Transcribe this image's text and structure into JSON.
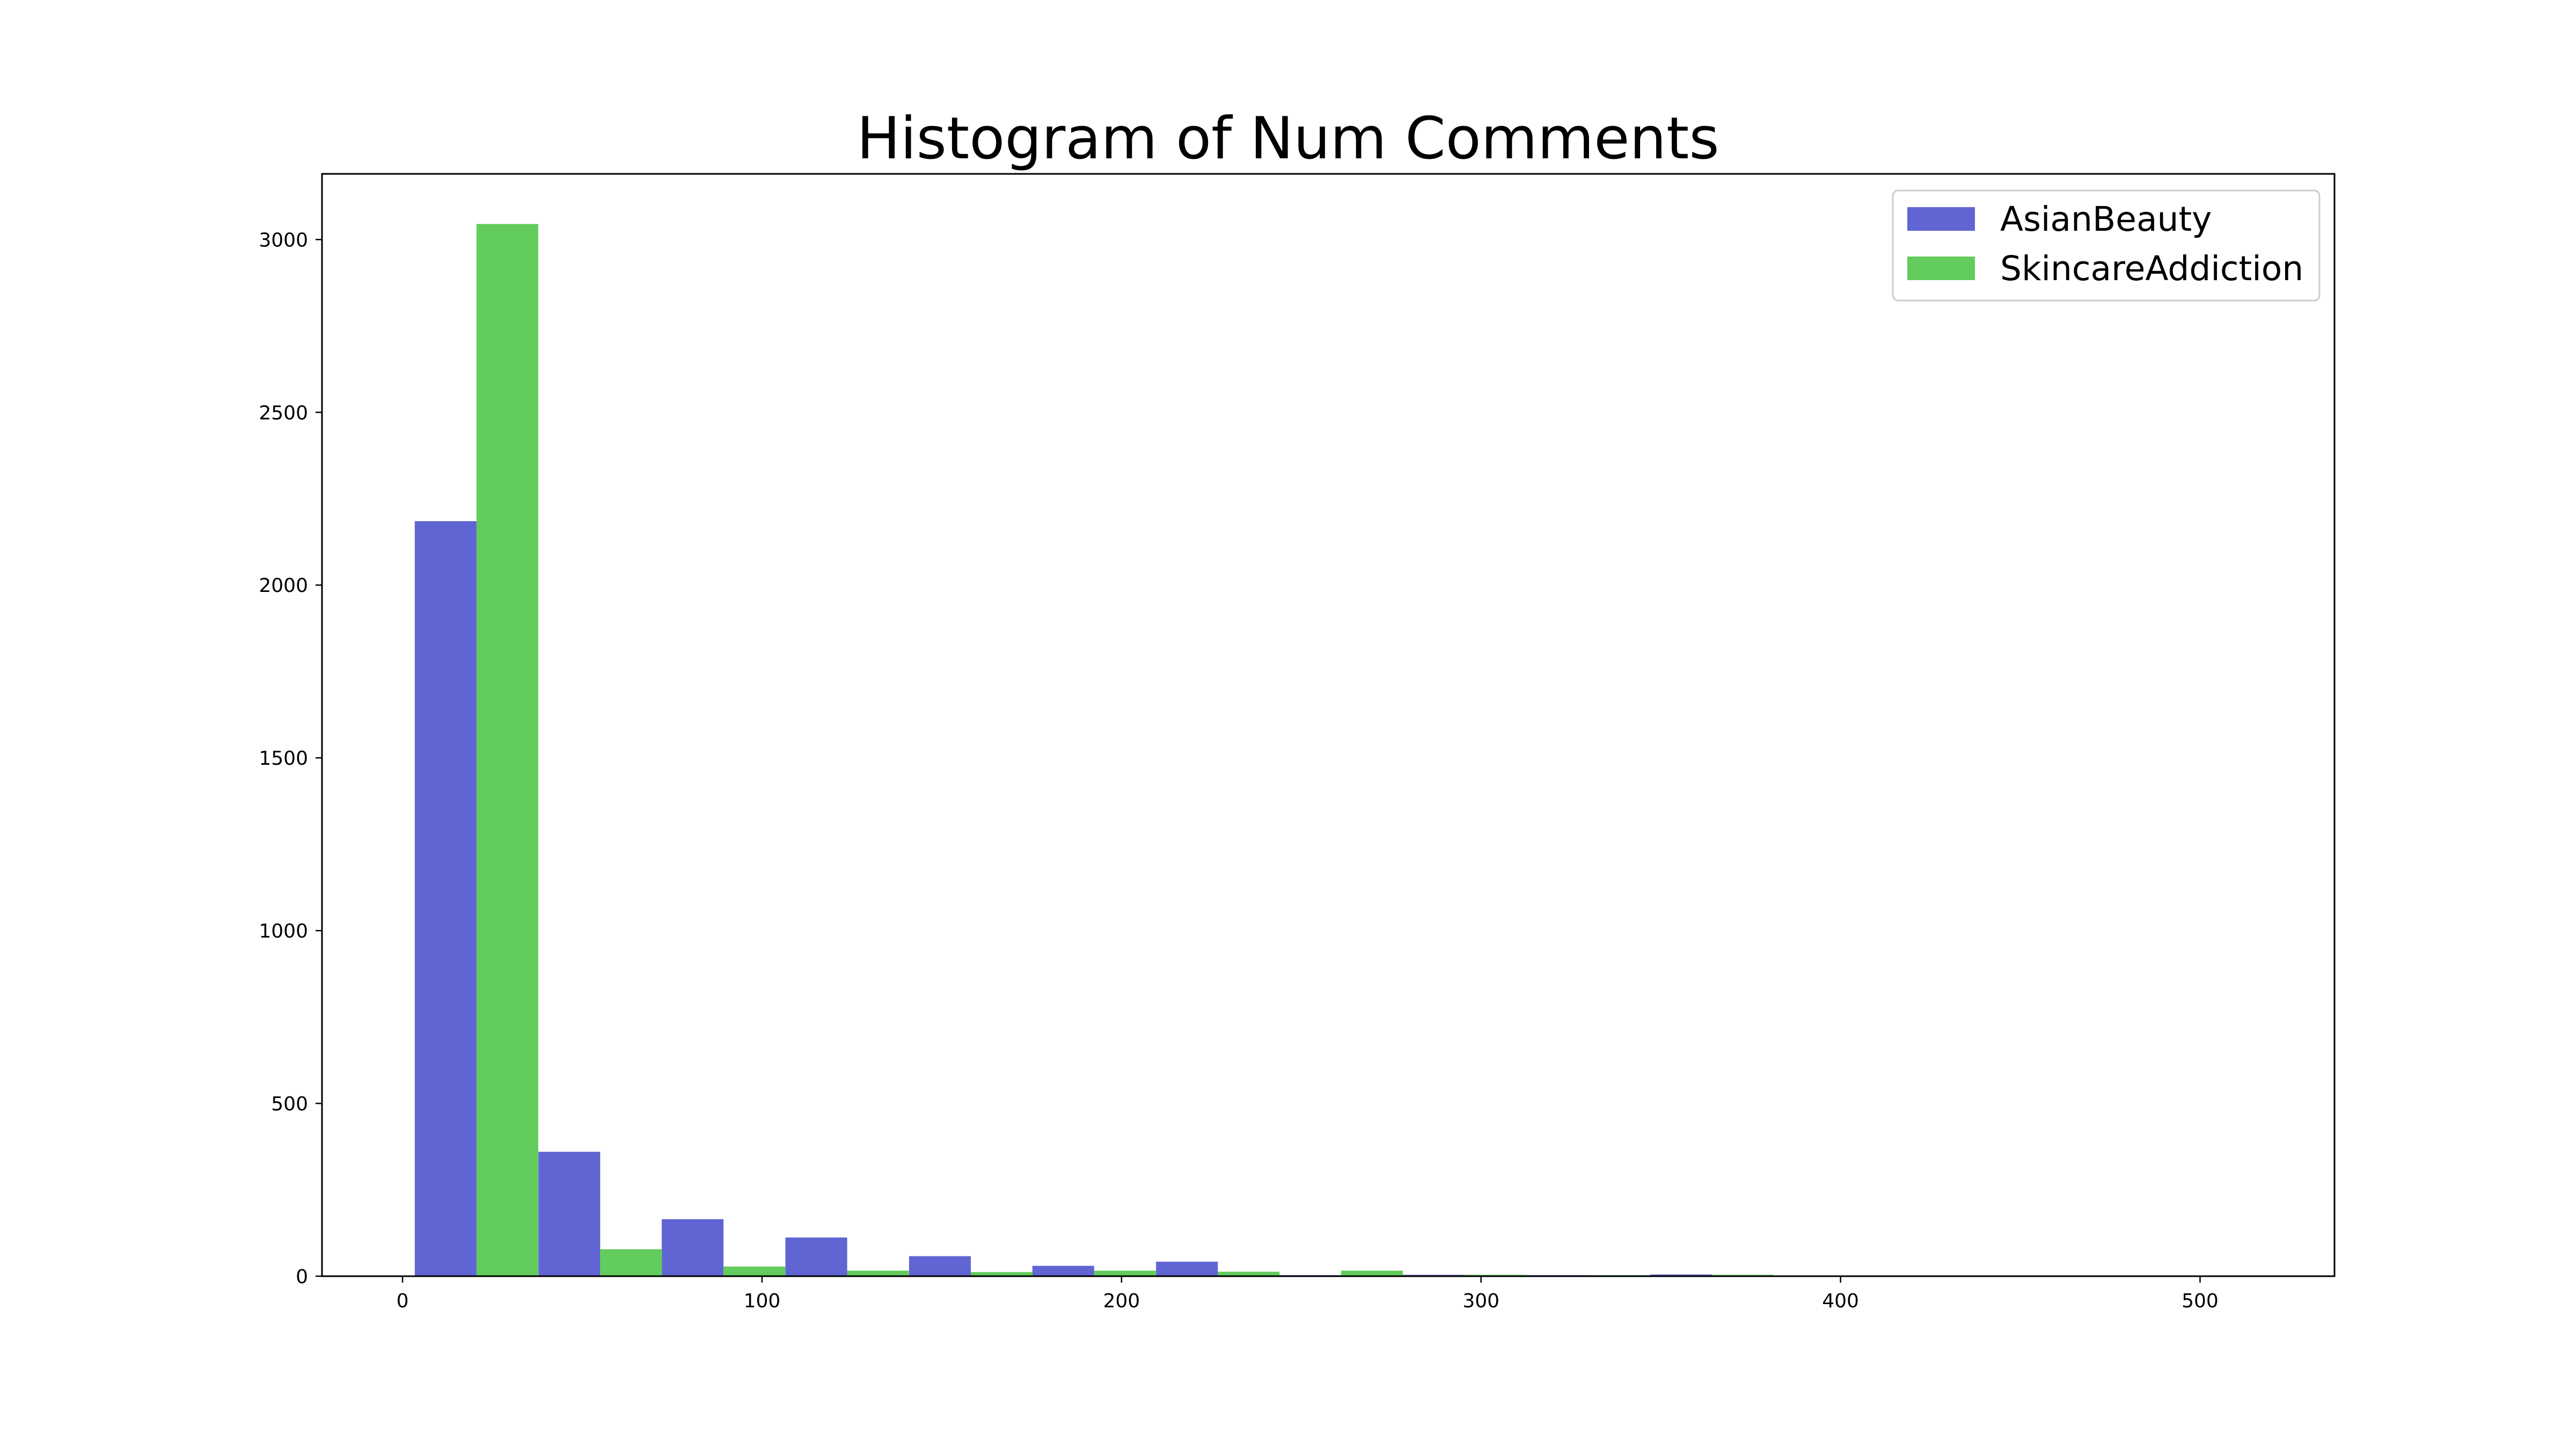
{
  "chart_data": {
    "type": "bar",
    "title": "Histogram of Num Comments",
    "xlabel": "",
    "ylabel": "",
    "xlim": [
      -22.4,
      537.4
    ],
    "ylim": [
      0,
      3190
    ],
    "xticks": [
      0,
      100,
      200,
      300,
      400,
      500
    ],
    "yticks": [
      0,
      500,
      1000,
      1500,
      2000,
      2500,
      3000
    ],
    "grid": false,
    "legend_position": "top-right",
    "bin_width": 34.36,
    "series": [
      {
        "name": "AsianBeauty",
        "color": "#6065d3",
        "bins": [
          {
            "x": 3.4,
            "value": 2185
          },
          {
            "x": 37.8,
            "value": 360
          },
          {
            "x": 72.1,
            "value": 165
          },
          {
            "x": 106.5,
            "value": 112
          },
          {
            "x": 140.9,
            "value": 58
          },
          {
            "x": 175.2,
            "value": 30
          },
          {
            "x": 209.6,
            "value": 42
          },
          {
            "x": 243.9,
            "value": 3
          },
          {
            "x": 278.3,
            "value": 4
          },
          {
            "x": 312.7,
            "value": 3
          },
          {
            "x": 347.0,
            "value": 5
          },
          {
            "x": 381.4,
            "value": 2
          },
          {
            "x": 415.7,
            "value": 1
          },
          {
            "x": 450.1,
            "value": 1
          },
          {
            "x": 484.5,
            "value": 1
          }
        ]
      },
      {
        "name": "SkincareAddiction",
        "color": "#62cc5c",
        "bins": [
          {
            "x": 3.4,
            "value": 3045
          },
          {
            "x": 37.8,
            "value": 78
          },
          {
            "x": 72.1,
            "value": 28
          },
          {
            "x": 106.5,
            "value": 16
          },
          {
            "x": 140.9,
            "value": 12
          },
          {
            "x": 175.2,
            "value": 16
          },
          {
            "x": 209.6,
            "value": 13
          },
          {
            "x": 243.9,
            "value": 16
          },
          {
            "x": 278.3,
            "value": 4
          },
          {
            "x": 312.7,
            "value": 3
          },
          {
            "x": 347.0,
            "value": 4
          },
          {
            "x": 381.4,
            "value": 2
          },
          {
            "x": 415.7,
            "value": 1
          },
          {
            "x": 450.1,
            "value": 1
          },
          {
            "x": 484.5,
            "value": 1
          }
        ]
      }
    ]
  }
}
